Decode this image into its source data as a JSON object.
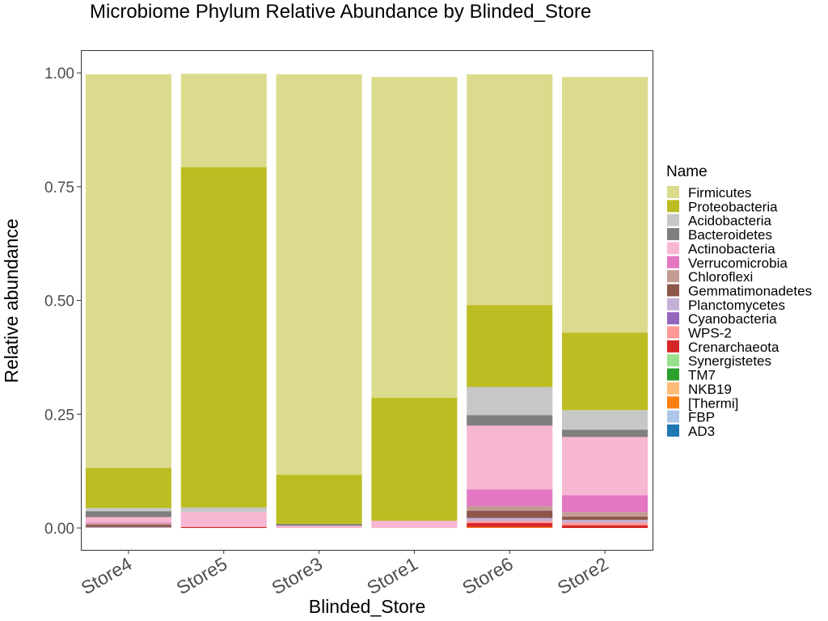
{
  "chart_data": {
    "type": "bar",
    "stacked": true,
    "title": "Microbiome Phylum Relative Abundance by Blinded_Store",
    "xlabel": "Blinded_Store",
    "ylabel": "Relative abundance",
    "ylim": [
      -0.048,
      1.05
    ],
    "yticks": [
      0,
      0.25,
      0.5,
      0.75,
      1.0
    ],
    "ytick_labels": [
      "0.00",
      "0.25",
      "0.50",
      "0.75",
      "1.00"
    ],
    "grid": false,
    "legend_title": "Name",
    "legend_position": "right",
    "categories": [
      "Store4",
      "Store5",
      "Store3",
      "Store1",
      "Store6",
      "Store2"
    ],
    "series": [
      {
        "name": "Firmicutes",
        "color": "#dbdb8d",
        "values": [
          0.865,
          0.205,
          0.88,
          0.705,
          0.507,
          0.562
        ]
      },
      {
        "name": "Proteobacteria",
        "color": "#bcbd22",
        "values": [
          0.088,
          0.748,
          0.108,
          0.27,
          0.18,
          0.17
        ]
      },
      {
        "name": "Acidobacteria",
        "color": "#c7c7c7",
        "values": [
          0.007,
          0.01,
          0.0,
          0.0,
          0.062,
          0.043
        ]
      },
      {
        "name": "Bacteroidetes",
        "color": "#7f7f7f",
        "values": [
          0.013,
          0.0,
          0.004,
          0.0,
          0.023,
          0.016
        ]
      },
      {
        "name": "Actinobacteria",
        "color": "#f7b6d2",
        "values": [
          0.012,
          0.032,
          0.005,
          0.016,
          0.14,
          0.128
        ]
      },
      {
        "name": "Verrucomicrobia",
        "color": "#e377c2",
        "values": [
          0.002,
          0.0,
          0.0,
          0.0,
          0.037,
          0.037
        ]
      },
      {
        "name": "Chloroflexi",
        "color": "#c49c94",
        "values": [
          0.003,
          0.001,
          0.0,
          0.0,
          0.01,
          0.01
        ]
      },
      {
        "name": "Gemmatimonadetes",
        "color": "#8c564b",
        "values": [
          0.005,
          0.0,
          0.0,
          0.0,
          0.016,
          0.007
        ]
      },
      {
        "name": "Planctomycetes",
        "color": "#c5b0d5",
        "values": [
          0.002,
          0.0,
          0.0,
          0.0,
          0.007,
          0.006
        ]
      },
      {
        "name": "Cyanobacteria",
        "color": "#9467bd",
        "values": [
          0.0,
          0.0,
          0.0,
          0.0,
          0.0,
          0.0
        ]
      },
      {
        "name": "WPS-2",
        "color": "#ff9896",
        "values": [
          0.0,
          0.0,
          0.0,
          0.0,
          0.004,
          0.006
        ]
      },
      {
        "name": "Crenarchaeota",
        "color": "#d62728",
        "values": [
          0.0,
          0.002,
          0.0,
          0.0,
          0.009,
          0.006
        ]
      },
      {
        "name": "Synergistetes",
        "color": "#98df8a",
        "values": [
          0.0,
          0.0,
          0.0,
          0.0,
          0.0,
          0.0
        ]
      },
      {
        "name": "TM7",
        "color": "#2ca02c",
        "values": [
          0.0,
          0.0,
          0.0,
          0.0,
          0.0,
          0.0
        ]
      },
      {
        "name": "NKB19",
        "color": "#ffbb78",
        "values": [
          0.0,
          0.0,
          0.0,
          0.0,
          0.0,
          0.0
        ]
      },
      {
        "name": "[Thermi]",
        "color": "#ff7f0e",
        "values": [
          0.0,
          0.0,
          0.0,
          0.0,
          0.002,
          0.0
        ]
      },
      {
        "name": "FBP",
        "color": "#aec7e8",
        "values": [
          0.0,
          0.0,
          0.0,
          0.0,
          0.0,
          0.0
        ]
      },
      {
        "name": "AD3",
        "color": "#1f77b4",
        "values": [
          0.0,
          0.0,
          0.0,
          0.0,
          0.0,
          0.0
        ]
      }
    ]
  }
}
